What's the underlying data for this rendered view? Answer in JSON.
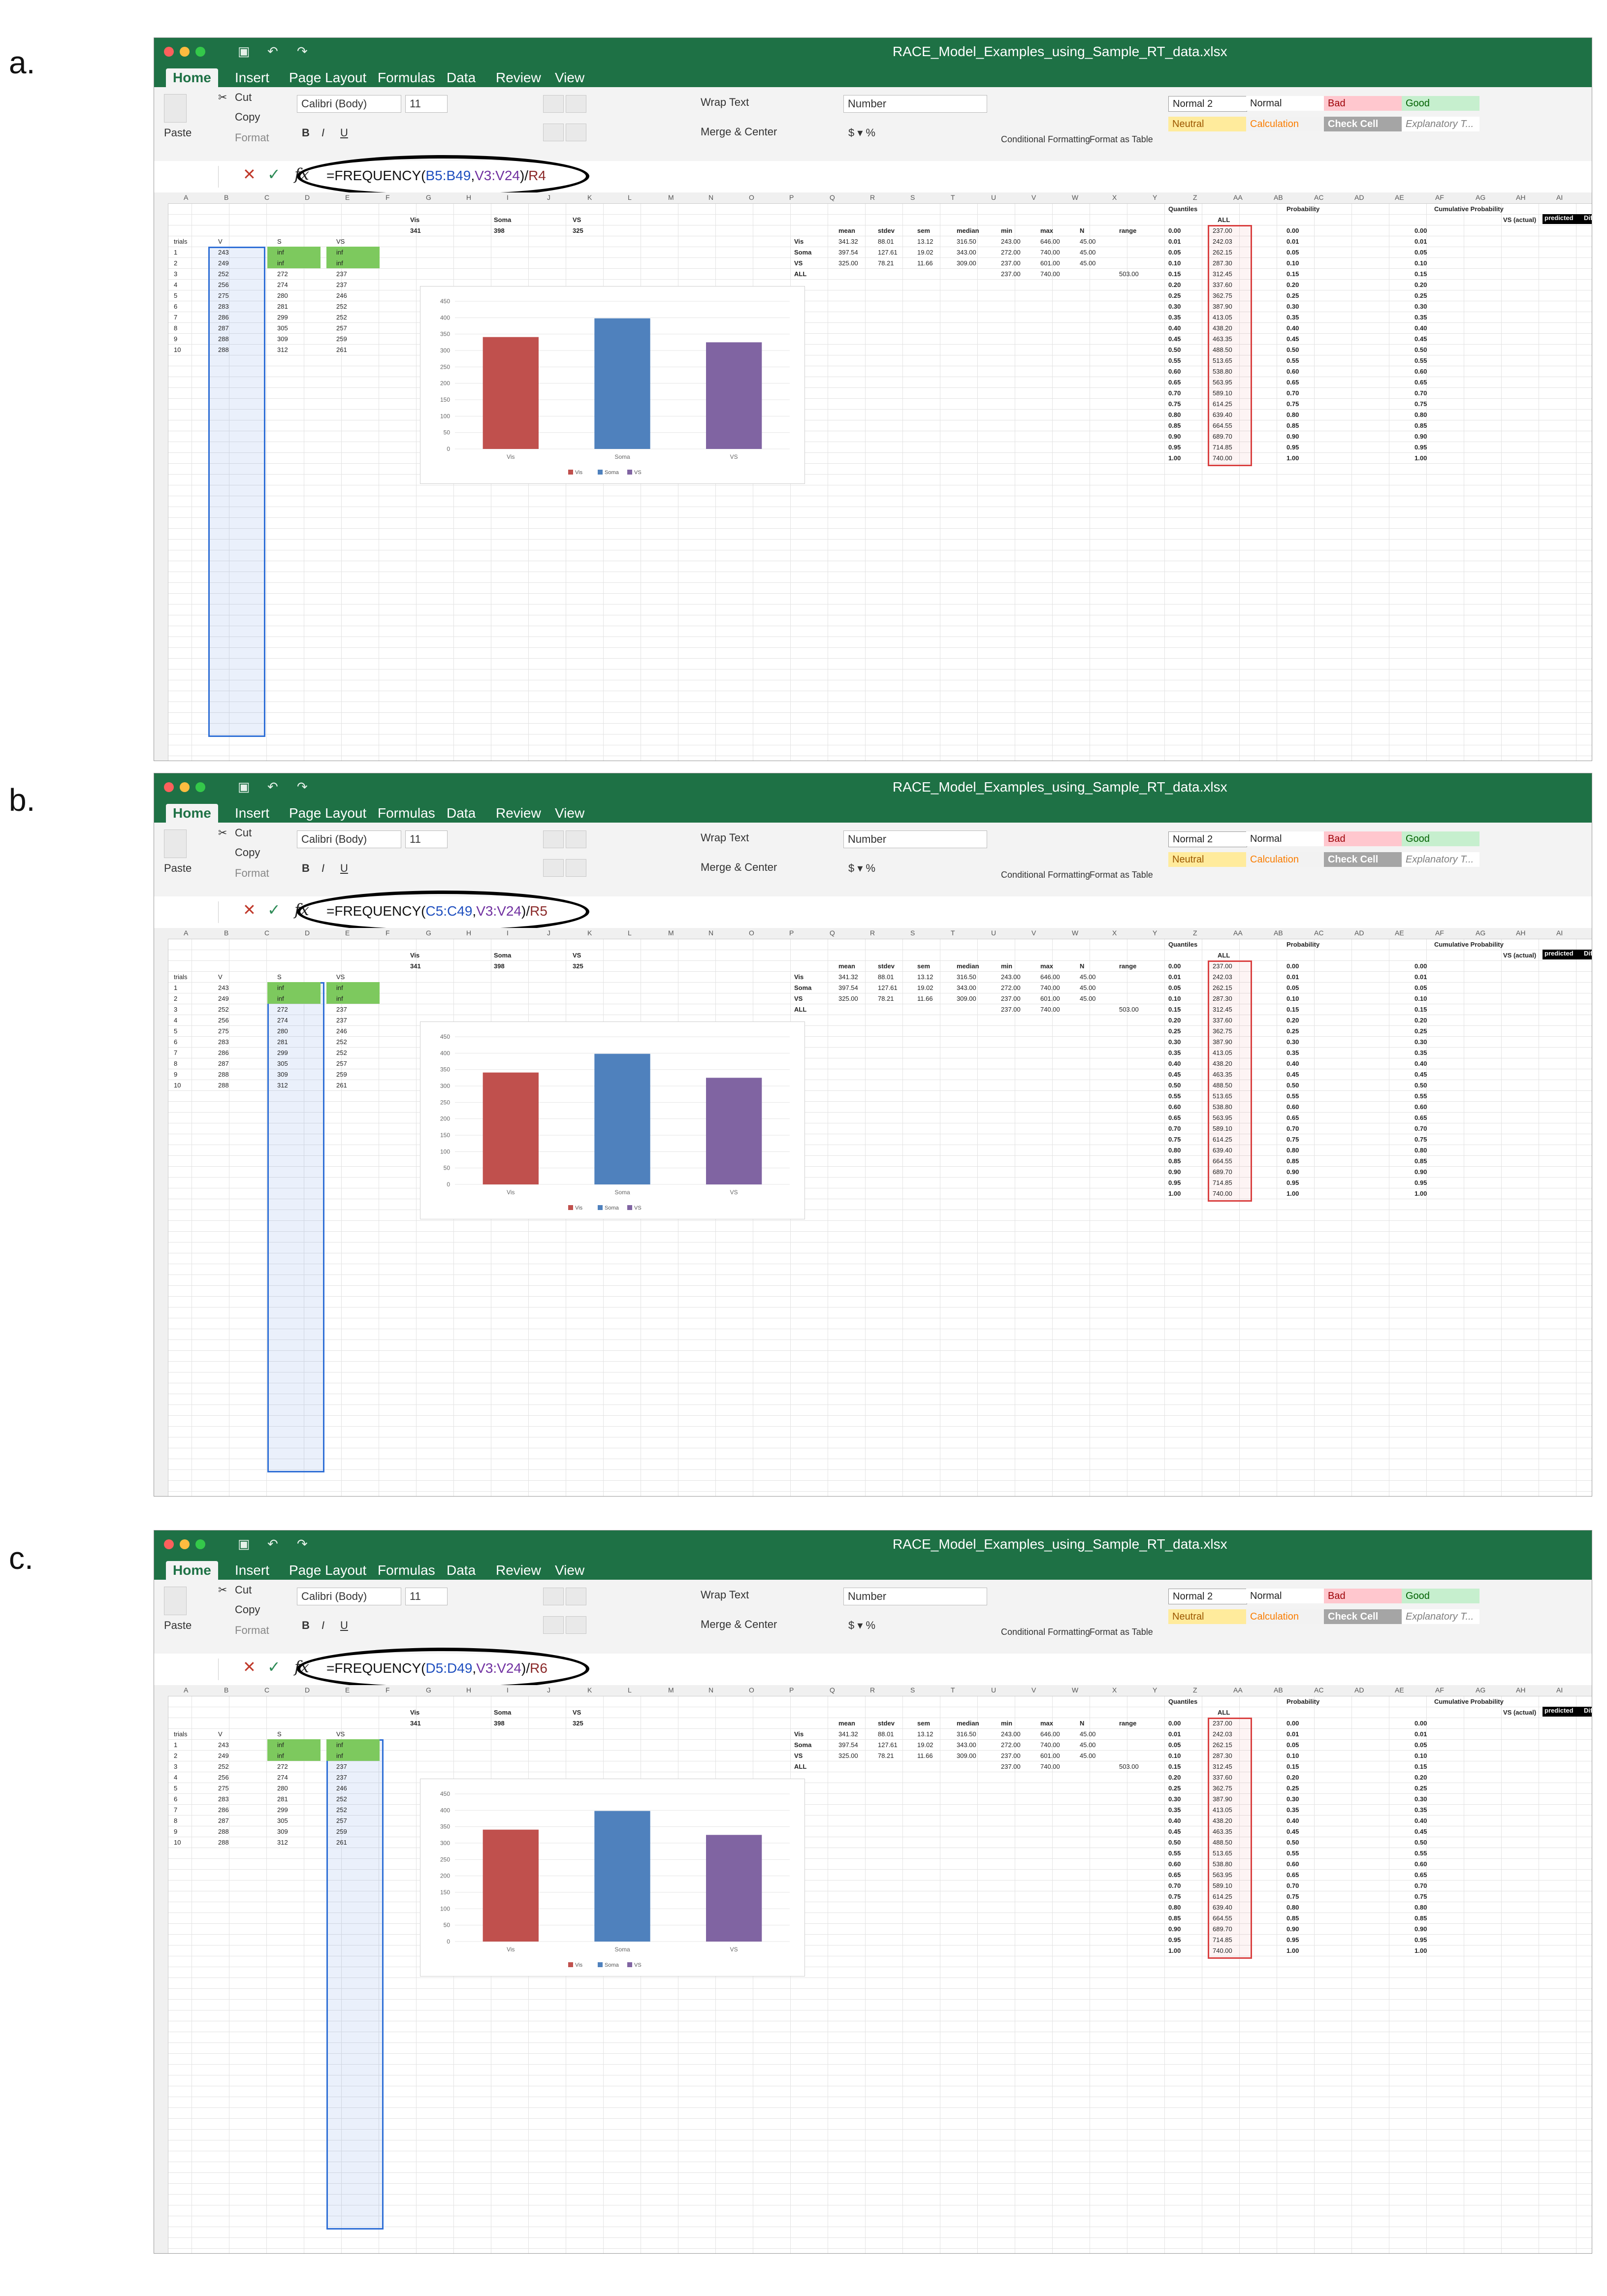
{
  "panels": [
    {
      "label": "a.",
      "formula": {
        "prefix": "=FREQUENCY(",
        "ref1": "B5:B49",
        "sep": ",",
        "ref2": "V3:V24",
        "div": ")/",
        "ref3": "R4"
      }
    },
    {
      "label": "b.",
      "formula": {
        "prefix": "=FREQUENCY(",
        "ref1": "C5:C49",
        "sep": ",",
        "ref2": "V3:V24",
        "div": ")/",
        "ref3": "R5"
      }
    },
    {
      "label": "c.",
      "formula": {
        "prefix": "=FREQUENCY(",
        "ref1": "D5:D49",
        "sep": ",",
        "ref2": "V3:V24",
        "div": ")/",
        "ref3": "R6"
      }
    }
  ],
  "window": {
    "title": "RACE_Model_Examples_using_Sample_RT_data.xlsx",
    "tabs": [
      "Home",
      "Insert",
      "Page Layout",
      "Formulas",
      "Data",
      "Review",
      "View"
    ]
  },
  "ribbon": {
    "cut": "Cut",
    "copy": "Copy",
    "paste": "Paste",
    "format": "Format",
    "font_name": "Calibri (Body)",
    "font_size": "11",
    "wrap_text": "Wrap Text",
    "merge_center": "Merge & Center",
    "number_format": "Number",
    "conditional_formatting": "Conditional Formatting",
    "format_as_table": "Format as Table",
    "styles": [
      "Normal 2",
      "Normal",
      "Bad",
      "Good",
      "Neutral",
      "Calculation",
      "Check Cell",
      "Explanatory T..."
    ],
    "bold": "B",
    "italic": "I",
    "underline": "U"
  },
  "sheet": {
    "col_headers": [
      "A",
      "B",
      "C",
      "D",
      "E",
      "F",
      "G",
      "H",
      "I",
      "J",
      "K",
      "L",
      "M",
      "N",
      "O",
      "P",
      "Q",
      "R",
      "S",
      "T",
      "U",
      "V",
      "W",
      "X",
      "Y",
      "Z",
      "AA",
      "AB",
      "AC",
      "AD",
      "AE",
      "AF",
      "AG",
      "AH",
      "AI"
    ],
    "rt_headers": [
      "trials",
      "V",
      "S",
      "VS"
    ],
    "rt_first_rows": [
      [
        "1",
        "243",
        "inf",
        "inf"
      ],
      [
        "2",
        "249",
        "inf",
        "inf"
      ],
      [
        "3",
        "252",
        "272",
        "237"
      ],
      [
        "4",
        "256",
        "274",
        "237"
      ],
      [
        "5",
        "275",
        "280",
        "246"
      ],
      [
        "6",
        "283",
        "281",
        "252"
      ],
      [
        "7",
        "286",
        "299",
        "252"
      ],
      [
        "8",
        "287",
        "305",
        "257"
      ],
      [
        "9",
        "288",
        "309",
        "259"
      ],
      [
        "10",
        "288",
        "312",
        "261"
      ]
    ],
    "stats_headers": [
      "mean",
      "stdev",
      "sem",
      "median",
      "min",
      "max",
      "N",
      "range"
    ],
    "stats_rows": [
      [
        "Vis",
        "341.32",
        "88.01",
        "13.12",
        "316.50",
        "243.00",
        "646.00",
        "45.00"
      ],
      [
        "Soma",
        "397.54",
        "127.61",
        "19.02",
        "343.00",
        "272.00",
        "740.00",
        "45.00"
      ],
      [
        "VS",
        "325.00",
        "78.21",
        "11.66",
        "309.00",
        "237.00",
        "601.00",
        "45.00"
      ],
      [
        "ALL",
        "",
        "",
        "",
        "",
        "237.00",
        "740.00",
        "",
        "503.00"
      ]
    ],
    "top_vals": {
      "vis_label": "Vis",
      "soma_label": "Soma",
      "vs_label": "VS",
      "vis": "341",
      "soma": "398",
      "vs": "325"
    },
    "quantiles_label": "Quantiles",
    "all_label": "ALL",
    "probability_label": "Probability",
    "cumulative_label": "Cumulative Probability",
    "predicted_label": "predicted",
    "difference_label": "Difference",
    "vs_actual_label": "VS (actual)",
    "quantiles": [
      "0.00",
      "0.01",
      "0.05",
      "0.10",
      "0.15",
      "0.20",
      "0.25",
      "0.30",
      "0.35",
      "0.40",
      "0.45",
      "0.50",
      "0.55",
      "0.60",
      "0.65",
      "0.70",
      "0.75",
      "0.80",
      "0.85",
      "0.90",
      "0.95",
      "1.00"
    ],
    "all_values": [
      "237.00",
      "242.03",
      "262.15",
      "287.30",
      "312.45",
      "337.60",
      "362.75",
      "387.90",
      "413.05",
      "438.20",
      "463.35",
      "488.50",
      "513.65",
      "538.80",
      "563.95",
      "589.10",
      "614.25",
      "639.40",
      "664.55",
      "689.70",
      "714.85",
      "740.00"
    ]
  },
  "chart_data": {
    "type": "bar",
    "categories": [
      "Vis",
      "Soma",
      "VS"
    ],
    "values": [
      341,
      398,
      325
    ],
    "series_colors": [
      "#c0504d",
      "#4f81bd",
      "#8064a2"
    ],
    "ylim": [
      0,
      450
    ],
    "yticks": [
      0,
      50,
      100,
      150,
      200,
      250,
      300,
      350,
      400,
      450
    ],
    "legend": [
      "Vis",
      "Soma",
      "VS"
    ],
    "legend_position": "bottom"
  }
}
